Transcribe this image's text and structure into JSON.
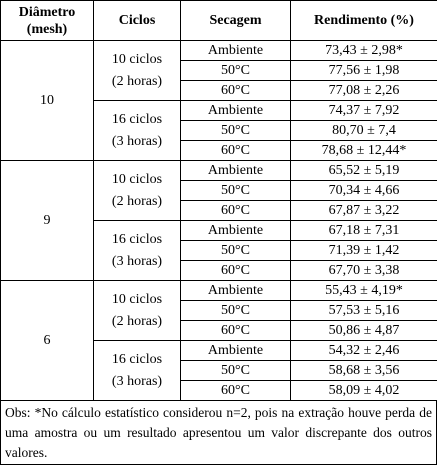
{
  "table": {
    "headers": [
      "Diâmetro\n(mesh)",
      "Ciclos",
      "Secagem",
      "Rendimento (%)"
    ],
    "groups": [
      {
        "diameter": "10",
        "cycles": [
          {
            "label": "10 ciclos\n(2 horas)",
            "rows": [
              [
                "Ambiente",
                "73,43 ± 2,98*"
              ],
              [
                "50°C",
                "77,56 ± 1,98"
              ],
              [
                "60°C",
                "77,08 ± 2,26"
              ]
            ]
          },
          {
            "label": "16 ciclos\n(3 horas)",
            "rows": [
              [
                "Ambiente",
                "74,37 ± 7,92"
              ],
              [
                "50°C",
                "80,70 ± 7,4"
              ],
              [
                "60°C",
                "78,68 ± 12,44*"
              ]
            ]
          }
        ]
      },
      {
        "diameter": "9",
        "cycles": [
          {
            "label": "10 ciclos\n(2 horas)",
            "rows": [
              [
                "Ambiente",
                "65,52 ± 5,19"
              ],
              [
                "50°C",
                "70,34 ± 4,66"
              ],
              [
                "60°C",
                "67,87 ± 3,22"
              ]
            ]
          },
          {
            "label": "16 ciclos\n(3 horas)",
            "rows": [
              [
                "Ambiente",
                "67,18 ± 7,31"
              ],
              [
                "50°C",
                "71,39 ± 1,42"
              ],
              [
                "60°C",
                "67,70 ± 3,38"
              ]
            ]
          }
        ]
      },
      {
        "diameter": "6",
        "cycles": [
          {
            "label": "10 ciclos\n(2 horas)",
            "rows": [
              [
                "Ambiente",
                "55,43 ± 4,19*"
              ],
              [
                "50°C",
                "57,53 ± 5,16"
              ],
              [
                "60°C",
                "50,86 ± 4,87"
              ]
            ]
          },
          {
            "label": "16 ciclos\n(3 horas)",
            "rows": [
              [
                "Ambiente",
                "54,32 ± 2,46"
              ],
              [
                "50°C",
                "58,68 ± 3,56"
              ],
              [
                "60°C",
                "58,09 ± 4,02"
              ]
            ]
          }
        ]
      }
    ]
  },
  "note": "Obs: *No cálculo estatístico considerou n=2, pois na extração houve perda de uma amostra ou um resultado apresentou um valor discrepante dos outros valores."
}
